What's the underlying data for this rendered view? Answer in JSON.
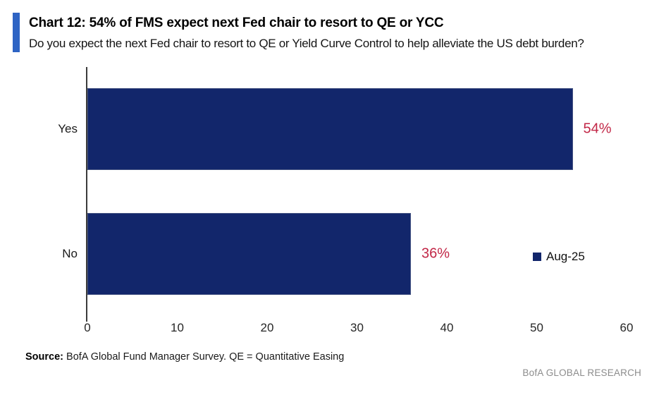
{
  "header": {
    "title": "Chart 12: 54% of FMS expect next Fed chair to resort to QE or YCC",
    "subtitle": "Do you expect the next Fed chair to resort to QE or Yield Curve Control to help alleviate the US debt burden?"
  },
  "chart_data": {
    "type": "bar",
    "orientation": "horizontal",
    "categories": [
      "Yes",
      "No"
    ],
    "series": [
      {
        "name": "Aug-25",
        "values": [
          54,
          36
        ]
      }
    ],
    "data_labels": [
      "54%",
      "36%"
    ],
    "xlim": [
      0,
      60
    ],
    "x_ticks": [
      "0",
      "10",
      "20",
      "30",
      "40",
      "50",
      "60"
    ],
    "grid": false,
    "legend": {
      "label": "Aug-25",
      "position": "right-middle"
    }
  },
  "footer": {
    "source_label": "Source:",
    "source_text": " BofA Global Fund Manager Survey. QE = Quantitative Easing",
    "brand": "BofA GLOBAL RESEARCH"
  },
  "colors": {
    "accent_bar": "#2e64c4",
    "bar_navy": "#12266b",
    "data_label_red": "#c22747",
    "axis": "#3c3c3c",
    "brand_gray": "#8c8c8c"
  }
}
